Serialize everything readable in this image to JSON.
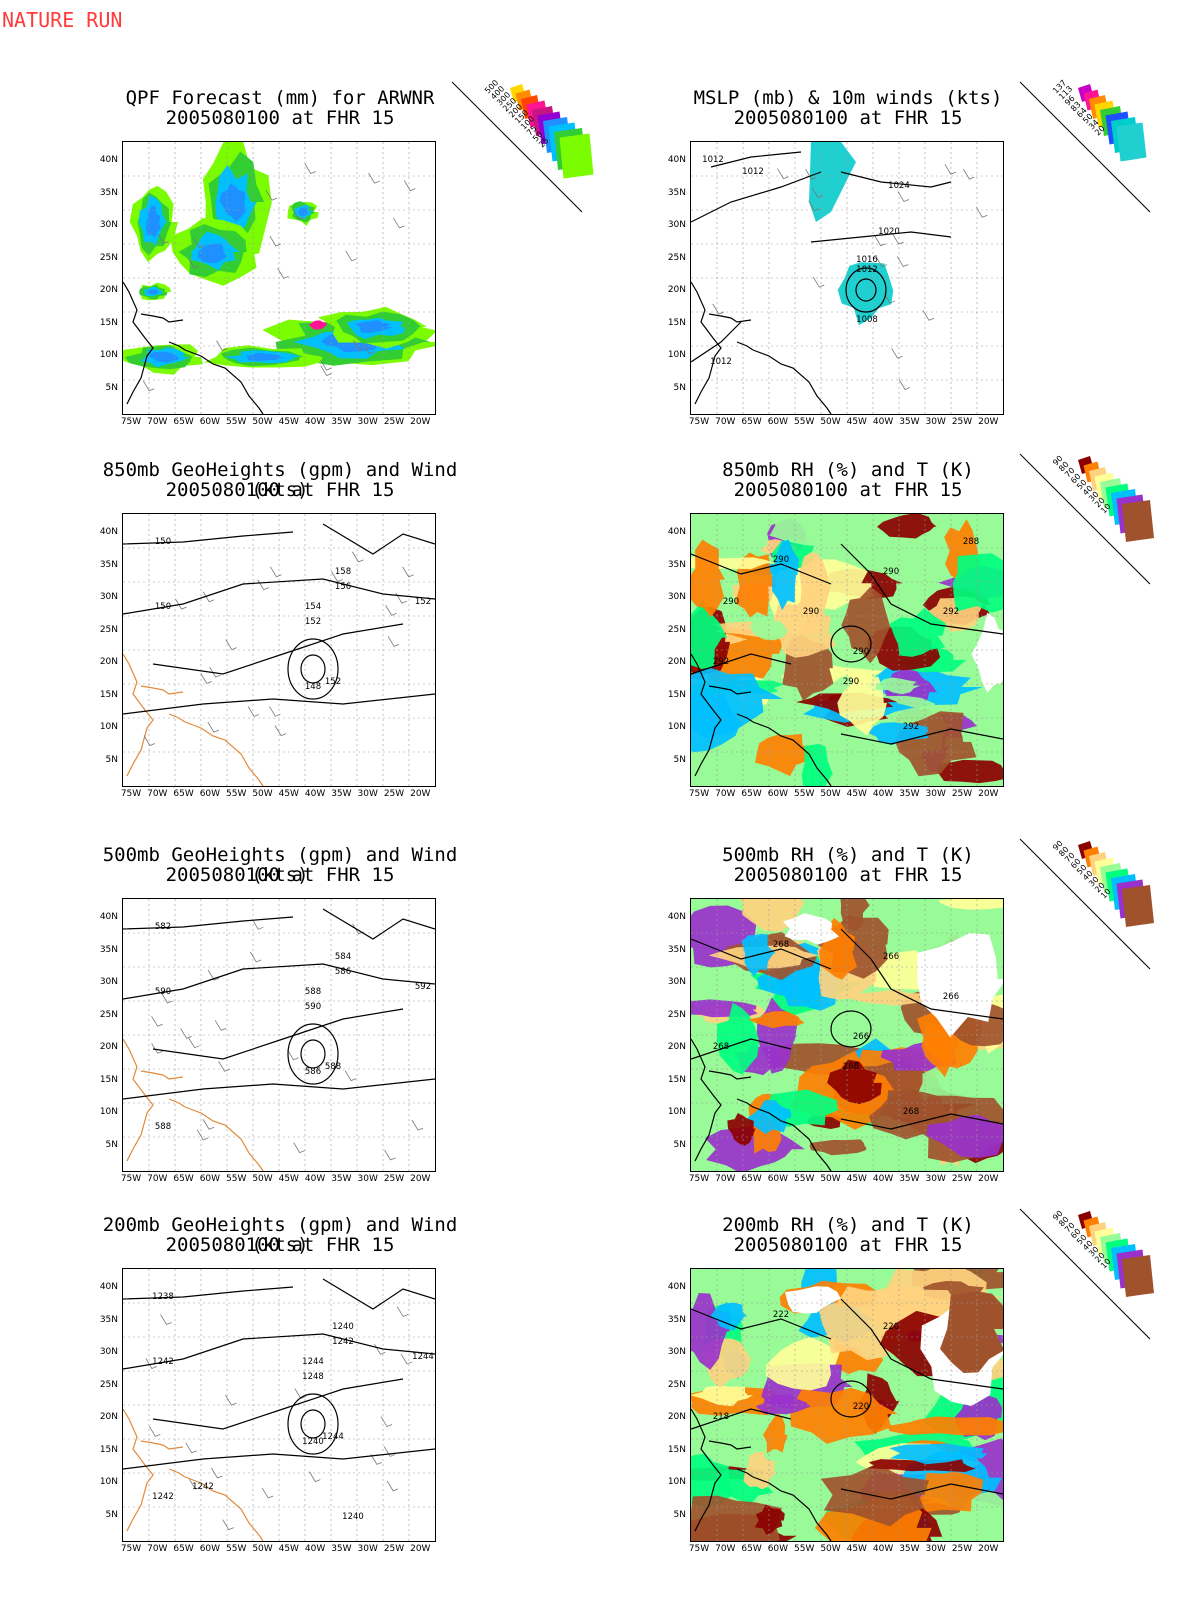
{
  "header": {
    "label": "NATURE RUN"
  },
  "axes": {
    "lat_labels": [
      "40N",
      "35N",
      "30N",
      "25N",
      "20N",
      "15N",
      "10N",
      "5N"
    ],
    "lon_labels": [
      "75W",
      "70W",
      "65W",
      "60W",
      "55W",
      "50W",
      "45W",
      "40W",
      "35W",
      "30W",
      "25W",
      "20W"
    ]
  },
  "panels": [
    {
      "id": "qpf",
      "title_line1": "QPF Forecast (mm) for ARWNR",
      "title_line2": "2005080100 at FHR 15",
      "legend_labels": [
        "500",
        "400",
        "300",
        "250",
        "200",
        "150",
        "100",
        "75",
        "50",
        "25"
      ],
      "legend_colors": [
        "#ffd700",
        "#ff8c00",
        "#ff4500",
        "#ff1493",
        "#c71585",
        "#9400d3",
        "#1e90ff",
        "#00bfff",
        "#32cd32",
        "#7cfc00"
      ],
      "contour_labels": []
    },
    {
      "id": "mslp",
      "title_line1": "MSLP (mb) & 10m winds (kts)",
      "title_line2": "2005080100 at FHR 15",
      "legend_labels": [
        "137",
        "113",
        "96",
        "83",
        "64",
        "50",
        "34",
        "20"
      ],
      "legend_colors": [
        "#c800c8",
        "#ff1493",
        "#ff8c00",
        "#ffd700",
        "#32cd32",
        "#1e50ff",
        "#00cccc",
        "#20d0d0"
      ],
      "contour_labels": [
        "1012",
        "1012",
        "1024",
        "1020",
        "1016",
        "1012",
        "1008",
        "1012"
      ]
    },
    {
      "id": "h850",
      "title_line1": "850mb GeoHeights (gpm) and Wind (kts)",
      "title_line2": "2005080100 at FHR 15",
      "legend_labels": [],
      "legend_colors": [],
      "contour_labels": [
        "150",
        "158",
        "156",
        "154",
        "152",
        "152",
        "150",
        "148",
        "152"
      ]
    },
    {
      "id": "rh850",
      "title_line1": "850mb RH (%) and T (K)",
      "title_line2": "2005080100 at FHR 15",
      "legend_labels": [
        "90",
        "80",
        "70",
        "60",
        "50",
        "40",
        "30",
        "20",
        "10"
      ],
      "legend_colors": [
        "#8b0000",
        "#ff7f00",
        "#ffd27f",
        "#ffff99",
        "#98fb98",
        "#00ff7f",
        "#00bfff",
        "#9932cc",
        "#a0522d"
      ],
      "contour_labels": [
        "290",
        "290",
        "290",
        "292",
        "292",
        "292",
        "290",
        "290",
        "288",
        "290"
      ]
    },
    {
      "id": "h500",
      "title_line1": "500mb GeoHeights (gpm) and Wind (kts)",
      "title_line2": "2005080100 at FHR 15",
      "legend_labels": [],
      "legend_colors": [],
      "contour_labels": [
        "582",
        "584",
        "586",
        "588",
        "590",
        "592",
        "590",
        "586",
        "588",
        "588"
      ]
    },
    {
      "id": "rh500",
      "title_line1": "500mb RH (%) and T (K)",
      "title_line2": "2005080100 at FHR 15",
      "legend_labels": [
        "90",
        "80",
        "70",
        "60",
        "50",
        "40",
        "30",
        "20",
        "10"
      ],
      "legend_colors": [
        "#8b0000",
        "#ff7f00",
        "#ffd27f",
        "#ffff99",
        "#98fb98",
        "#00ff7f",
        "#00bfff",
        "#9932cc",
        "#a0522d"
      ],
      "contour_labels": [
        "268",
        "266",
        "266",
        "268",
        "268",
        "266",
        "268"
      ]
    },
    {
      "id": "h200",
      "title_line1": "200mb GeoHeights (gpm) and Wind (kts)",
      "title_line2": "2005080100 at FHR 15",
      "legend_labels": [],
      "legend_colors": [],
      "contour_labels": [
        "1238",
        "1240",
        "1242",
        "1244",
        "1248",
        "1244",
        "1242",
        "1240",
        "1244",
        "1242",
        "1242",
        "1240"
      ]
    },
    {
      "id": "rh200",
      "title_line1": "200mb RH (%) and T (K)",
      "title_line2": "2005080100 at FHR 15",
      "legend_labels": [
        "90",
        "80",
        "70",
        "60",
        "50",
        "40",
        "30",
        "20",
        "10"
      ],
      "legend_colors": [
        "#8b0000",
        "#ff7f00",
        "#ffd27f",
        "#ffff99",
        "#98fb98",
        "#00ff7f",
        "#00bfff",
        "#9932cc",
        "#a0522d"
      ],
      "contour_labels": [
        "222",
        "220",
        "220",
        "218"
      ]
    }
  ]
}
